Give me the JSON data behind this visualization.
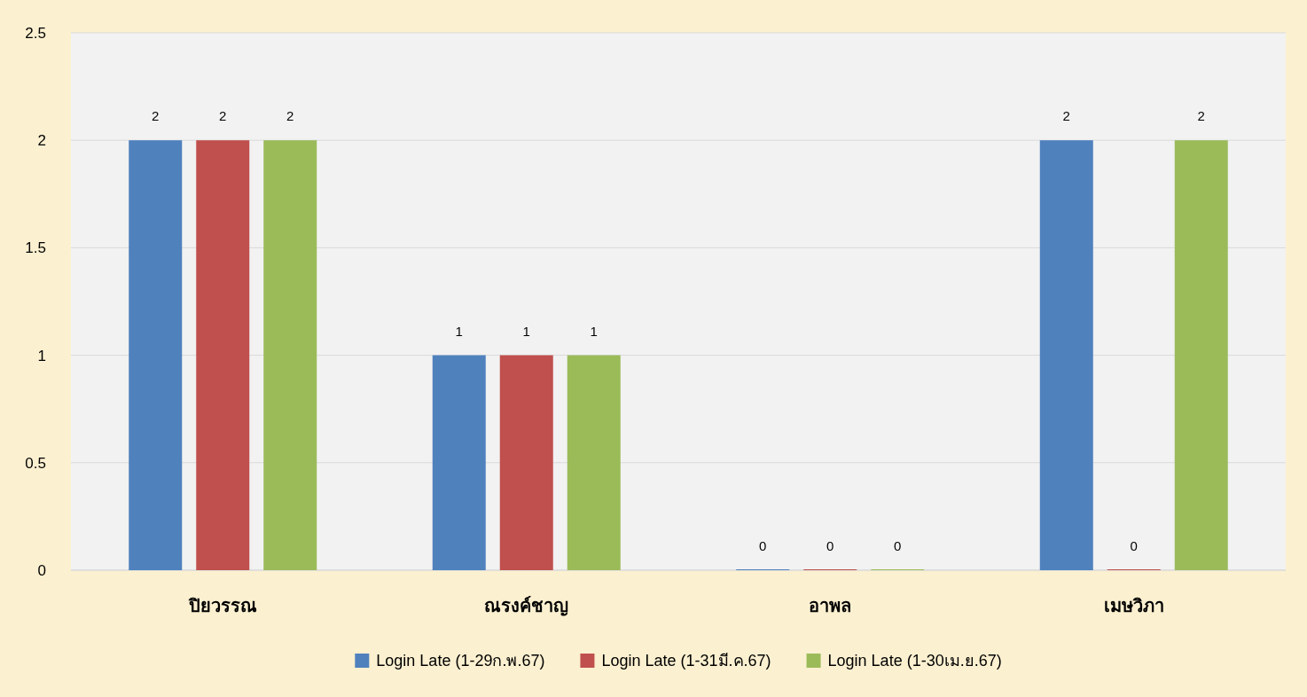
{
  "chart_data": {
    "type": "bar",
    "categories": [
      "ปิยวรรณ",
      "ณรงค์ชาญ",
      "อาพล",
      "เมษวิภา"
    ],
    "series": [
      {
        "name": "Login Late (1-29ก.พ.67)",
        "color": "#4f81bd",
        "values": [
          2,
          1,
          0,
          2
        ]
      },
      {
        "name": "Login Late (1-31มี.ค.67)",
        "color": "#c0504d",
        "values": [
          2,
          1,
          0,
          0
        ]
      },
      {
        "name": "Login Late (1-30เม.ย.67)",
        "color": "#9bbb59",
        "values": [
          2,
          1,
          0,
          2
        ]
      }
    ],
    "ylim": [
      0,
      2.5
    ],
    "yticks": [
      0,
      0.5,
      1,
      1.5,
      2,
      2.5
    ],
    "grid": "y",
    "legend": "bottom",
    "data_labels": true
  }
}
